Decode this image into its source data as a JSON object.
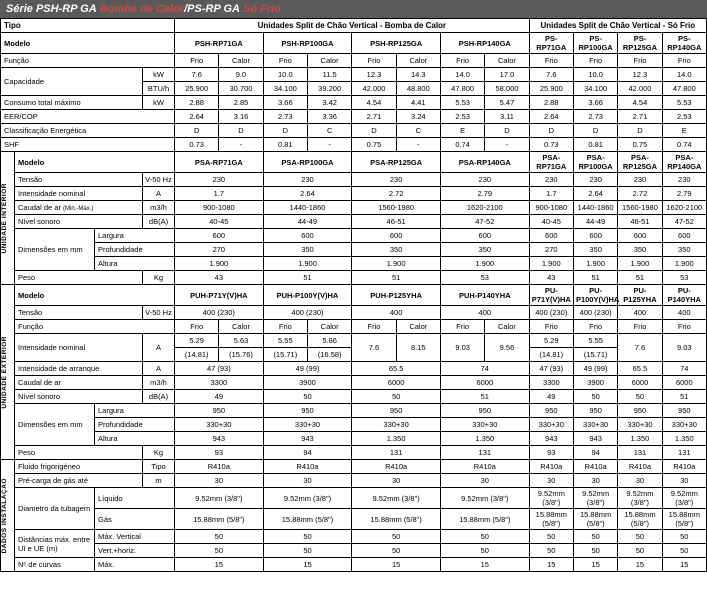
{
  "header": {
    "series1": "Série PSH-RP GA",
    "tag1": "Bomba de Calor",
    "sep": " / ",
    "series2": "PS-RP GA",
    "tag2": "Só Frio"
  },
  "labels": {
    "tipo": "Tipo",
    "modelo": "Modelo",
    "funcao": "Função",
    "capacidade": "Capacidade",
    "consumo": "Consumo total máximo",
    "eercop": "EER/COP",
    "classif": "Classificação Energética",
    "shf": "SHF",
    "tensao": "Tensão",
    "intensidade_nom": "Intensidade nominal",
    "caudal_ar": "Caudal de ar ",
    "caudal_ar_sub": "(Min.-Máx.)",
    "nivel_sonoro": "Nível sonoro",
    "dimensoes": "Dimensões em mm",
    "largura": "Largura",
    "profundidade": "Profundidade",
    "altura": "Altura",
    "peso": "Peso",
    "intensidade_arr": "Intensidade de arranque",
    "caudal_ar2": "Caudal de ar",
    "fluido": "Fluido frigorigéneo",
    "precarga": "Pré-carga de gás até",
    "diam_tub": "Diametro da tubagem",
    "dist_max": "Distâncias máx. entre UI e UE (m)",
    "n_curvas": "Nᵉ de curvas",
    "liquido": "Líquido",
    "gas": "Gás",
    "max_vert": "Máx. Vertical",
    "vert_horiz": "Vert.+horiz.",
    "max": "Máx.",
    "tipo_lbl": "Tipo",
    "v50hz": "V-50 Hz",
    "kw": "kW",
    "btuh": "BTU/h",
    "a": "A",
    "m3h": "m3/h",
    "dba": "dB(A)",
    "kg": "Kg",
    "m": "m",
    "interior": "UNIDADE INTERIOR",
    "exterior": "UNIDADE EXTERIOR",
    "dados": "DADOS INSTALAÇÃO"
  },
  "header_tipo": {
    "bc": "Unidades Split de Chão Vertical - Bomba de Calor",
    "sf": "Unidades Split de Chão Vertical - Só Frio"
  },
  "top_models": [
    "PSH-RP71GA",
    "PSH-RP100GA",
    "PSH-RP125GA",
    "PSH-RP140GA",
    "PS-RP71GA",
    "PS-RP100GA",
    "PS-RP125GA",
    "PS-RP140GA"
  ],
  "funcao_vals": [
    "Frio",
    "Calor",
    "Frio",
    "Calor",
    "Frio",
    "Calor",
    "Frio",
    "Calor",
    "Frio",
    "Frio",
    "Frio",
    "Frio"
  ],
  "cap_kw": [
    "7.6",
    "9.0",
    "10.0",
    "11.5",
    "12.3",
    "14.3",
    "14.0",
    "17.0",
    "7.6",
    "10.0",
    "12.3",
    "14.0"
  ],
  "cap_btu": [
    "25.900",
    "30.700",
    "34.100",
    "39.200",
    "42.000",
    "48.800",
    "47.800",
    "58.000",
    "25.900",
    "34.100",
    "42.000",
    "47.800"
  ],
  "consumo": [
    "2.88",
    "2.85",
    "3.66",
    "3.42",
    "4.54",
    "4.41",
    "5.53",
    "5.47",
    "2.88",
    "3.66",
    "4.54",
    "5.53"
  ],
  "eercop": [
    "2.64",
    "3.16",
    "2.73",
    "3.36",
    "2.71",
    "3.24",
    "2.53",
    "3.11",
    "2.64",
    "2.73",
    "2.71",
    "2.53"
  ],
  "classif": [
    "D",
    "D",
    "D",
    "C",
    "D",
    "C",
    "E",
    "D",
    "D",
    "D",
    "D",
    "E"
  ],
  "shf": [
    "0.73",
    "-",
    "0.81",
    "-",
    "0.75",
    "-",
    "0.74",
    "-",
    "0.73",
    "0.81",
    "0.75",
    "0.74"
  ],
  "int_models": [
    "PSA-RP71GA",
    "PSA-RP100GA",
    "PSA-RP125GA",
    "PSA-RP140GA",
    "PSA-RP71GA",
    "PSA-RP100GA",
    "PSA-RP125GA",
    "PSA-RP140GA"
  ],
  "int_tensao": [
    "230",
    "230",
    "230",
    "230",
    "230",
    "230",
    "230",
    "230"
  ],
  "int_intens": [
    "1.7",
    "2.64",
    "2.72",
    "2.79",
    "1.7",
    "2.64",
    "2.72",
    "2.79"
  ],
  "int_caudal": [
    "900-1080",
    "1440-1860",
    "1560-1980",
    "1620-2100",
    "900-1080",
    "1440-1860",
    "1560-1980",
    "1620-2100"
  ],
  "int_nivel": [
    "40-45",
    "44-49",
    "46-51",
    "47-52",
    "40-45",
    "44-49",
    "46-51",
    "47-52"
  ],
  "int_larg": [
    "600",
    "600",
    "600",
    "600",
    "600",
    "600",
    "600",
    "600"
  ],
  "int_prof": [
    "270",
    "350",
    "350",
    "350",
    "270",
    "350",
    "350",
    "350"
  ],
  "int_alt": [
    "1.900",
    "1.900",
    "1.900",
    "1.900",
    "1.900",
    "1.900",
    "1.900",
    "1.900"
  ],
  "int_peso": [
    "43",
    "51",
    "51",
    "53",
    "43",
    "51",
    "51",
    "53"
  ],
  "ext_models": [
    "PUH-P71Y(V)HA",
    "PUH-P100Y(V)HA",
    "PUH-P125YHA",
    "PUH-P140YHA",
    "PU-P71Y(V)HA",
    "PU-P100Y(V)HA",
    "PU-P125YHA",
    "PU-P140YHA"
  ],
  "ext_tensao": [
    "400 (230)",
    "400 (230)",
    "400",
    "400",
    "400 (230)",
    "400 (230)",
    "400",
    "400"
  ],
  "ext_funcao": [
    "Frio",
    "Calor",
    "Frio",
    "Calor",
    "Frio",
    "Calor",
    "Frio",
    "Calor",
    "Frio",
    "Frio",
    "Frio",
    "Frio"
  ],
  "ext_intens_top": [
    "5.29",
    "5.63",
    "5.55",
    "5.86",
    "7.6",
    "8.15",
    "9.03",
    "9.56",
    "5.29",
    "5.55",
    "7.6",
    "9.03"
  ],
  "ext_intens_bot": [
    "(14.81)",
    "(15.76)",
    "(15.71)",
    "(16.58)",
    "",
    "",
    "",
    "",
    "(14.81)",
    "(15.71)",
    "",
    ""
  ],
  "ext_arr": [
    "47 (93)",
    "49 (99)",
    "65.5",
    "74",
    "47 (93)",
    "49 (99)",
    "65.5",
    "74"
  ],
  "ext_caudal": [
    "3300",
    "3900",
    "6000",
    "6000",
    "3300",
    "3900",
    "6000",
    "6000"
  ],
  "ext_nivel": [
    "49",
    "50",
    "50",
    "51",
    "49",
    "50",
    "50",
    "51"
  ],
  "ext_larg": [
    "950",
    "950",
    "950",
    "950",
    "950",
    "950",
    "950",
    "950"
  ],
  "ext_prof": [
    "330+30",
    "330+30",
    "330+30",
    "330+30",
    "330+30",
    "330+30",
    "330+30",
    "330+30"
  ],
  "ext_alt": [
    "943",
    "943",
    "1.350",
    "1.350",
    "943",
    "943",
    "1.350",
    "1.350"
  ],
  "ext_peso": [
    "93",
    "94",
    "131",
    "131",
    "93",
    "94",
    "131",
    "131"
  ],
  "fluido_tipo": [
    "R410a",
    "R410a",
    "R410a",
    "R410a",
    "R410a",
    "R410a",
    "R410a",
    "R410a"
  ],
  "precarga": [
    "30",
    "30",
    "30",
    "30",
    "30",
    "30",
    "30",
    "30"
  ],
  "liq": [
    "9.52mm (3/8\")",
    "9.52mm (3/8\")",
    "9.52mm (3/8\")",
    "9.52mm (3/8\")",
    "9.52mm (3/8\")",
    "9.52mm (3/8\")",
    "9.52mm (3/8\")",
    "9.52mm (3/8\")"
  ],
  "gas": [
    "15.88mm (5/8\")",
    "15.88mm (5/8\")",
    "15.88mm (5/8\")",
    "15.88mm (5/8\")",
    "15.88mm (5/8\")",
    "15.88mm (5/8\")",
    "15.88mm (5/8\")",
    "15.88mm (5/8\")"
  ],
  "max_vert": [
    "50",
    "50",
    "50",
    "50",
    "50",
    "50",
    "50",
    "50"
  ],
  "vert_horiz": [
    "50",
    "50",
    "50",
    "50",
    "50",
    "50",
    "50",
    "50"
  ],
  "n_curvas": [
    "15",
    "15",
    "15",
    "15",
    "15",
    "15",
    "15",
    "15"
  ]
}
